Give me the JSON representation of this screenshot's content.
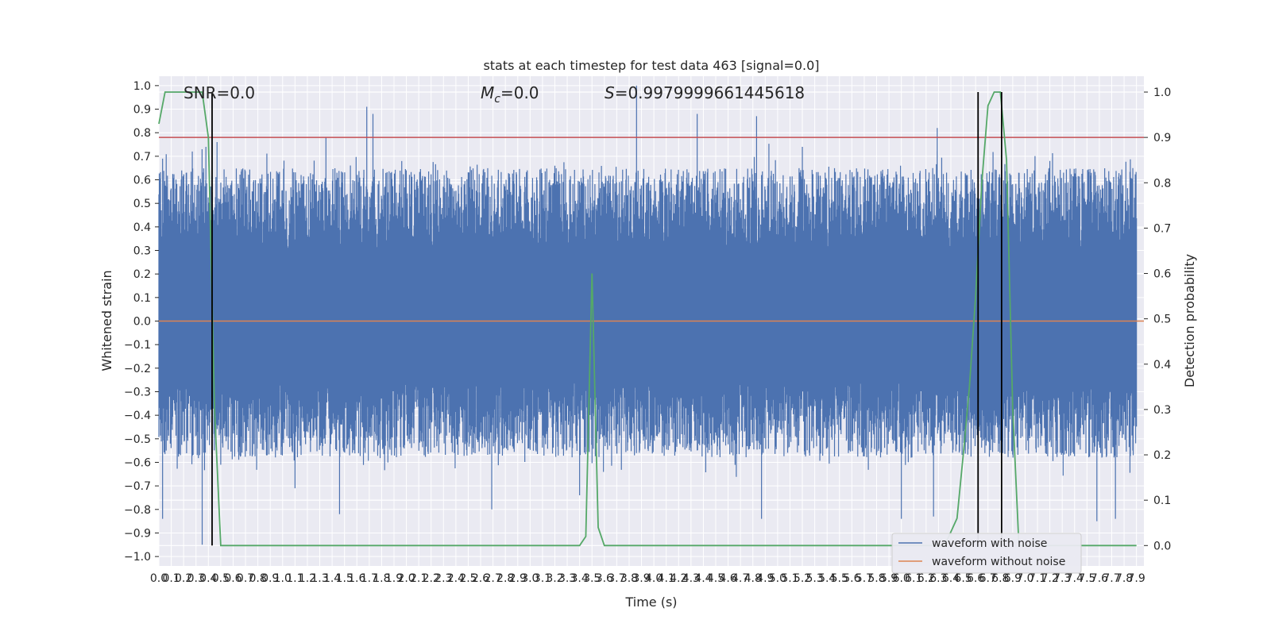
{
  "chart_data": {
    "type": "line",
    "title": "stats at each timestep for test data 463 [signal=0.0]",
    "xlabel": "Time (s)",
    "ylabel_left": "Whitened strain",
    "ylabel_right": "Detection probability",
    "xlim": [
      0.0,
      7.96
    ],
    "ylim_left": [
      -1.04,
      1.04
    ],
    "ylim_right": [
      -0.045,
      1.035
    ],
    "x_ticks": [
      "0.0",
      "0.1",
      "0.2",
      "0.3",
      "0.4",
      "0.5",
      "0.6",
      "0.7",
      "0.8",
      "0.9",
      "1.0",
      "1.1",
      "1.2",
      "1.3",
      "1.4",
      "1.5",
      "1.6",
      "1.7",
      "1.8",
      "1.9",
      "2.0",
      "2.1",
      "2.2",
      "2.3",
      "2.4",
      "2.5",
      "2.6",
      "2.7",
      "2.8",
      "2.9",
      "3.0",
      "3.1",
      "3.2",
      "3.3",
      "3.4",
      "3.5",
      "3.6",
      "3.7",
      "3.8",
      "3.9",
      "4.0",
      "4.1",
      "4.2",
      "4.3",
      "4.4",
      "4.5",
      "4.6",
      "4.7",
      "4.8",
      "4.9",
      "5.0",
      "5.1",
      "5.2",
      "5.3",
      "5.4",
      "5.5",
      "5.6",
      "5.7",
      "5.8",
      "5.9",
      "6.0",
      "6.1",
      "6.2",
      "6.3",
      "6.4",
      "6.5",
      "6.6",
      "6.7",
      "6.8",
      "6.9",
      "7.0",
      "7.1",
      "7.2",
      "7.3",
      "7.4",
      "7.5",
      "7.6",
      "7.7",
      "7.8",
      "7.9"
    ],
    "y_ticks_left": [
      "−1.0",
      "−0.9",
      "−0.8",
      "−0.7",
      "−0.6",
      "−0.5",
      "−0.4",
      "−0.3",
      "−0.2",
      "−0.1",
      "0.0",
      "0.1",
      "0.2",
      "0.3",
      "0.4",
      "0.5",
      "0.6",
      "0.7",
      "0.8",
      "0.9",
      "1.0"
    ],
    "y_ticks_right": [
      "0.0",
      "0.1",
      "0.2",
      "0.3",
      "0.4",
      "0.5",
      "0.6",
      "0.7",
      "0.8",
      "0.9",
      "1.0"
    ],
    "annotations": {
      "snr": "SNR=0.0",
      "mc_symbol": "M",
      "mc_sub": "c",
      "mc_value": "=0.0",
      "s_symbol": "S",
      "s_value": "=0.9979999661445618"
    },
    "threshold": {
      "axis": "right",
      "value": 0.9,
      "color": "#c44e52"
    },
    "vlines_x": [
      0.43,
      6.62,
      6.81
    ],
    "series": [
      {
        "name": "waveform with noise",
        "axis": "left",
        "color": "#4c72b0",
        "kind": "noise",
        "core_band": [
          -0.25,
          0.31
        ],
        "peaks_high": [
          [
            0.03,
            0.69
          ],
          [
            0.27,
            0.72
          ],
          [
            0.38,
            0.74
          ],
          [
            0.47,
            0.76
          ],
          [
            1.68,
            0.91
          ],
          [
            1.73,
            0.88
          ],
          [
            3.86,
            1.0
          ],
          [
            4.35,
            0.88
          ],
          [
            4.83,
            0.87
          ],
          [
            6.29,
            0.82
          ],
          [
            1.35,
            0.78
          ],
          [
            3.2,
            0.66
          ],
          [
            5.2,
            0.74
          ],
          [
            7.2,
            0.68
          ]
        ],
        "peaks_low": [
          [
            0.03,
            -0.84
          ],
          [
            0.35,
            -0.95
          ],
          [
            0.5,
            -0.61
          ],
          [
            1.46,
            -0.82
          ],
          [
            2.69,
            -0.8
          ],
          [
            4.87,
            -0.84
          ],
          [
            6.26,
            -0.83
          ],
          [
            6.0,
            -0.84
          ],
          [
            7.58,
            -0.85
          ],
          [
            7.73,
            -0.84
          ],
          [
            3.4,
            -0.74
          ],
          [
            1.1,
            -0.71
          ]
        ]
      },
      {
        "name": "waveform without noise",
        "axis": "left",
        "color": "#dd8452",
        "x": [
          0.0,
          7.96
        ],
        "y": [
          0.0,
          0.0
        ]
      },
      {
        "name": "detection probability",
        "axis": "right",
        "color": "#55a868",
        "x": [
          0.0,
          0.05,
          0.1,
          0.15,
          0.2,
          0.25,
          0.3,
          0.35,
          0.4,
          0.45,
          0.5,
          0.55,
          0.6,
          1.0,
          2.0,
          3.0,
          3.35,
          3.4,
          3.45,
          3.5,
          3.55,
          3.6,
          3.65,
          4.0,
          5.0,
          6.0,
          6.3,
          6.35,
          6.4,
          6.45,
          6.5,
          6.55,
          6.6,
          6.65,
          6.7,
          6.75,
          6.8,
          6.85,
          6.9,
          6.95,
          7.0,
          7.5,
          7.9
        ],
        "y": [
          0.93,
          1.0,
          1.0,
          1.0,
          1.0,
          1.0,
          1.0,
          1.0,
          0.9,
          0.3,
          0.0,
          0.0,
          0.0,
          0.0,
          0.0,
          0.0,
          0.0,
          0.0,
          0.02,
          0.6,
          0.04,
          0.0,
          0.0,
          0.0,
          0.0,
          0.0,
          0.0,
          0.0,
          0.03,
          0.06,
          0.2,
          0.35,
          0.55,
          0.8,
          0.97,
          1.0,
          1.0,
          0.85,
          0.3,
          0.0,
          0.0,
          0.0,
          0.0
        ]
      }
    ],
    "legend": {
      "position": "lower-right",
      "entries": [
        {
          "label": "waveform with noise",
          "color": "#4c72b0"
        },
        {
          "label": "waveform without noise",
          "color": "#dd8452"
        }
      ]
    },
    "grid": true,
    "style": {
      "plot_background": "#eaeaf2",
      "grid_color": "#ffffff"
    }
  }
}
